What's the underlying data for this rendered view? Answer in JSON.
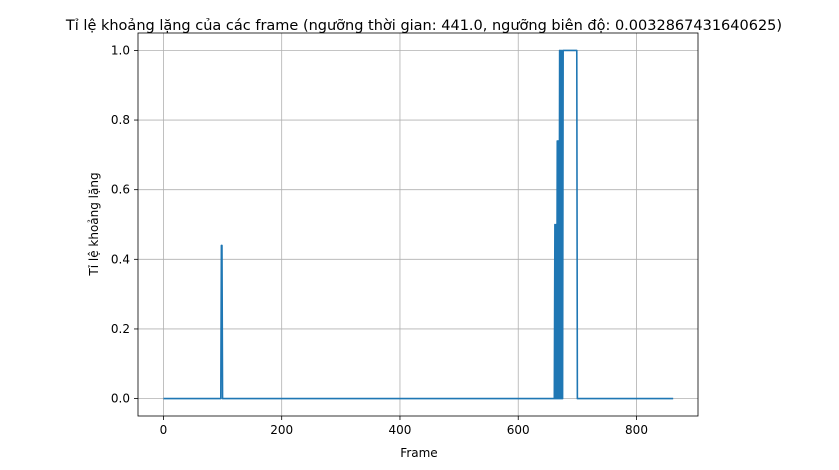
{
  "chart_data": {
    "type": "line",
    "title": "Tỉ lệ khoảng lặng của các frame (ngưỡng thời gian: 441.0, ngưỡng biên độ: 0.0032867431640625)",
    "xlabel": "Frame",
    "ylabel": "Tỉ lệ khoảng lặng",
    "xlim": [
      -43,
      904
    ],
    "ylim": [
      -0.05,
      1.05
    ],
    "xticks": [
      0,
      200,
      400,
      600,
      800
    ],
    "yticks": [
      0.0,
      0.2,
      0.4,
      0.6,
      0.8,
      1.0
    ],
    "xtick_labels": [
      "0",
      "200",
      "400",
      "600",
      "800"
    ],
    "ytick_labels": [
      "0.0",
      "0.2",
      "0.4",
      "0.6",
      "0.8",
      "1.0"
    ],
    "grid": true,
    "line_color": "#1f77b4",
    "series": [
      {
        "x": [
          0,
          97,
          98,
          99,
          100,
          660,
          661,
          662,
          663,
          664,
          665,
          666,
          667,
          668,
          669,
          670,
          671,
          672,
          673,
          674,
          675,
          676,
          677,
          678,
          679,
          680,
          681,
          682,
          683,
          684,
          685,
          686,
          687,
          688,
          689,
          690,
          691,
          692,
          693,
          694,
          695,
          696,
          697,
          698,
          699,
          700,
          701,
          862
        ],
        "y": [
          0,
          0,
          0.44,
          0.44,
          0,
          0,
          0,
          0.5,
          0,
          0.5,
          0,
          0.74,
          0,
          0.74,
          0,
          1.0,
          0,
          1.0,
          0,
          1.0,
          0,
          1.0,
          1.0,
          1.0,
          1.0,
          1.0,
          1.0,
          1.0,
          1.0,
          1.0,
          1.0,
          1.0,
          1.0,
          1.0,
          1.0,
          1.0,
          1.0,
          1.0,
          1.0,
          1.0,
          1.0,
          1.0,
          1.0,
          1.0,
          1.0,
          0,
          0,
          0
        ]
      }
    ]
  }
}
